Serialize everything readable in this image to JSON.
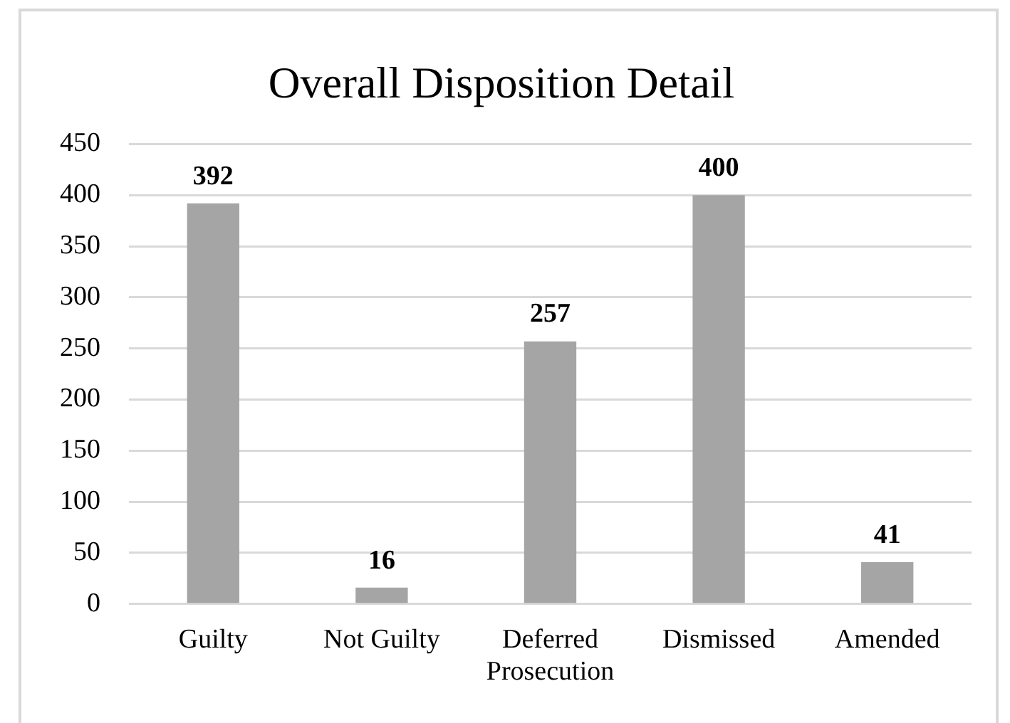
{
  "chart_data": {
    "type": "bar",
    "title": "Overall Disposition Detail",
    "categories": [
      "Guilty",
      "Not Guilty",
      "Deferred Prosecution",
      "Dismissed",
      "Amended"
    ],
    "values": [
      392,
      16,
      257,
      400,
      41
    ],
    "color": "#a5a5a5",
    "ylim": [
      0,
      450
    ],
    "yticks": [
      0,
      50,
      100,
      150,
      200,
      250,
      300,
      350,
      400,
      450
    ],
    "grid": "y",
    "legend": false,
    "data_labels": true
  }
}
